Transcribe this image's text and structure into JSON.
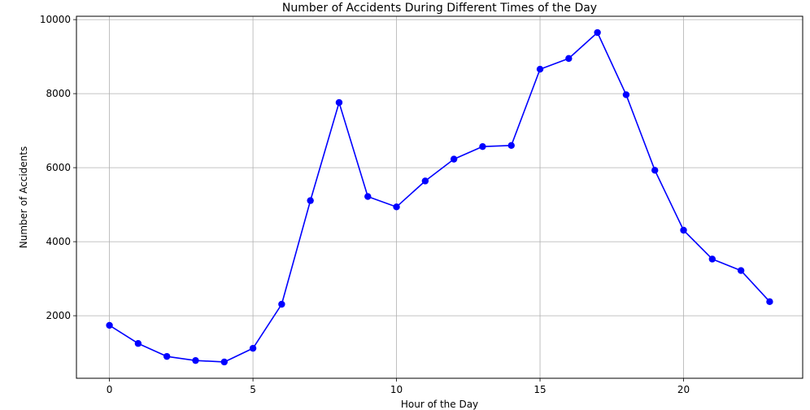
{
  "colors": {
    "line": "#0000ff",
    "grid": "#b0b0b0",
    "axis": "#000000",
    "background": "#ffffff"
  },
  "chart_data": {
    "type": "line",
    "title": "Number of Accidents During Different Times of the Day",
    "xlabel": "Hour of the Day",
    "ylabel": "Number of Accidents",
    "xlim": [
      -1.15,
      24.15
    ],
    "ylim": [
      310,
      10090
    ],
    "x_ticks": [
      0,
      5,
      10,
      15,
      20
    ],
    "y_ticks": [
      2000,
      4000,
      6000,
      8000,
      10000
    ],
    "grid": true,
    "marker": "circle",
    "series": [
      {
        "x": [
          0,
          1,
          2,
          3,
          4,
          5,
          6,
          7,
          8,
          9,
          10,
          11,
          12,
          13,
          14,
          15,
          16,
          17,
          18,
          19,
          20,
          21,
          22,
          23
        ],
        "values": [
          1740,
          1250,
          900,
          790,
          750,
          1120,
          2310,
          5110,
          7760,
          5220,
          4940,
          5640,
          6230,
          6570,
          6600,
          8660,
          8950,
          9650,
          7970,
          5930,
          4310,
          3530,
          3220,
          2380
        ]
      }
    ]
  }
}
